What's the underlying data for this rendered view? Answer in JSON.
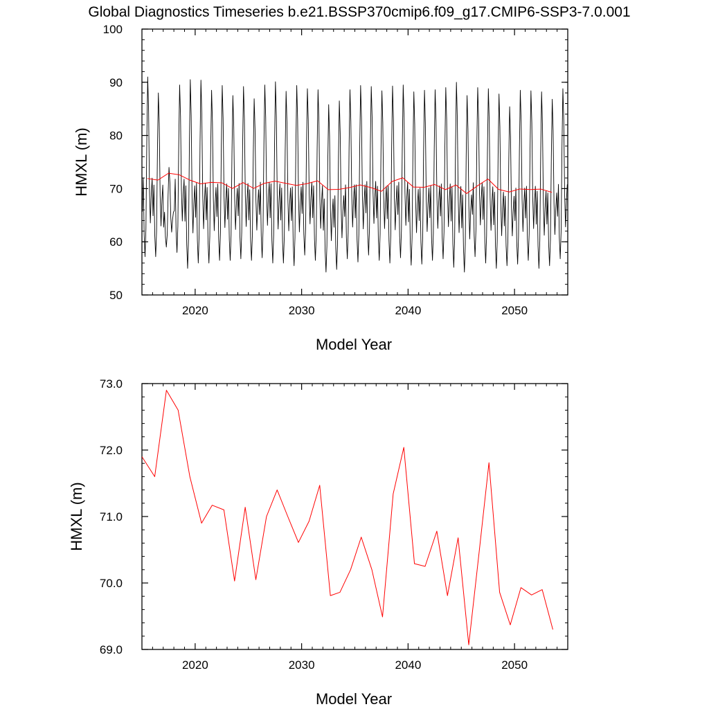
{
  "chart_data": [
    {
      "type": "line",
      "title": "Global Diagnostics Timeseries b.e21.BSSP370cmip6.f09_g17.CMIP6-SSP3-7.0.001",
      "xlabel": "Model Year",
      "ylabel": "HMXL (m)",
      "xlim": [
        2015,
        2055
      ],
      "ylim": [
        50,
        100
      ],
      "xticks": [
        2020,
        2030,
        2040,
        2050
      ],
      "yticks": [
        50,
        60,
        70,
        80,
        90,
        100
      ],
      "ytick_labels": [
        "50",
        "60",
        "70",
        "80",
        "90",
        "100"
      ],
      "grid": false,
      "legend": "none",
      "series": [
        {
          "type": "monthly",
          "color": "#000000",
          "start": 2015,
          "monthly_pattern": [
            66,
            72,
            62,
            58,
            63,
            79,
            90,
            84,
            70,
            64,
            69,
            72
          ],
          "annual_peaks": [
            91,
            88,
            74,
            89.5,
            90.5,
            90.4,
            88.5,
            89.4,
            87.5,
            89.2,
            86.9,
            89.5,
            90.1,
            88.3,
            89.4,
            88.8,
            88.6,
            85.8,
            86.5,
            88.6,
            89.4,
            89.2,
            88.4,
            89.3,
            89.5,
            88.2,
            88.5,
            88.6,
            89,
            90,
            87.5,
            89,
            88.8,
            87.8,
            85.4,
            88.5,
            88.4,
            88.2,
            86.8,
            88.8
          ],
          "annual_troughs": [
            57.2,
            57.2,
            59,
            58,
            55,
            56,
            56,
            56.5,
            56.5,
            56.8,
            56.5,
            57,
            56,
            56,
            55.5,
            57.5,
            56.5,
            54.3,
            54.8,
            56.8,
            56.2,
            57.5,
            56.5,
            56,
            57,
            55.6,
            55.8,
            56.5,
            56.8,
            55.2,
            54.3,
            57.2,
            56,
            55,
            55.5,
            55.8,
            56.5,
            55,
            55.5,
            56.8
          ]
        },
        {
          "type": "annual",
          "color": "#ff0000",
          "x": [
            2015.5,
            2016.5,
            2017.5,
            2018.5,
            2019.5,
            2020.5,
            2021.5,
            2022.5,
            2023.5,
            2024.5,
            2025.5,
            2026.5,
            2027.5,
            2028.5,
            2029.5,
            2030.5,
            2031.5,
            2032.5,
            2033.5,
            2034.5,
            2035.5,
            2036.5,
            2037.5,
            2038.5,
            2039.5,
            2040.5,
            2041.5,
            2042.5,
            2043.5,
            2044.5,
            2045.5,
            2046.5,
            2047.5,
            2048.5,
            2049.5,
            2050.5,
            2051.5,
            2052.5,
            2053.5
          ],
          "values": [
            71.9,
            71.6,
            72.9,
            72.6,
            71.6,
            70.9,
            71.17,
            71.1,
            70.03,
            71.14,
            70.05,
            71.0,
            71.4,
            71.0,
            70.61,
            70.93,
            71.47,
            69.81,
            69.86,
            70.2,
            70.69,
            70.2,
            69.49,
            71.34,
            72.04,
            70.29,
            70.25,
            70.78,
            69.81,
            70.68,
            69.07,
            70.5,
            71.81,
            69.86,
            69.37,
            69.93,
            69.82,
            69.9,
            69.3
          ]
        }
      ]
    },
    {
      "type": "line",
      "title": "",
      "xlabel": "Model Year",
      "ylabel": "HMXL (m)",
      "xlim": [
        2015,
        2055
      ],
      "ylim": [
        69,
        73
      ],
      "xticks": [
        2020,
        2030,
        2040,
        2050
      ],
      "yticks": [
        69,
        70,
        71,
        72,
        73
      ],
      "ytick_labels": [
        "69.0",
        "70.0",
        "71.0",
        "72.0",
        "73.0"
      ],
      "grid": false,
      "legend": "none",
      "series": [
        {
          "type": "annual",
          "color": "#ff0000",
          "x": [
            2015,
            2016.2,
            2017.3,
            2018.4,
            2019.5,
            2020.6,
            2021.6,
            2022.7,
            2023.7,
            2024.7,
            2025.7,
            2026.7,
            2027.7,
            2028.7,
            2029.7,
            2030.7,
            2031.7,
            2032.7,
            2033.6,
            2034.6,
            2035.6,
            2036.6,
            2037.6,
            2038.6,
            2039.6,
            2040.6,
            2041.6,
            2042.7,
            2043.7,
            2044.7,
            2045.7,
            2046.7,
            2047.6,
            2048.6,
            2049.6,
            2050.6,
            2051.6,
            2052.6,
            2053.6
          ],
          "values": [
            71.9,
            71.6,
            72.9,
            72.6,
            71.6,
            70.9,
            71.17,
            71.1,
            70.03,
            71.14,
            70.05,
            71.0,
            71.4,
            71.0,
            70.61,
            70.93,
            71.47,
            69.81,
            69.86,
            70.2,
            70.69,
            70.2,
            69.49,
            71.34,
            72.04,
            70.29,
            70.25,
            70.78,
            69.81,
            70.68,
            69.07,
            70.5,
            71.81,
            69.86,
            69.37,
            69.93,
            69.82,
            69.9,
            69.3
          ]
        }
      ]
    }
  ]
}
